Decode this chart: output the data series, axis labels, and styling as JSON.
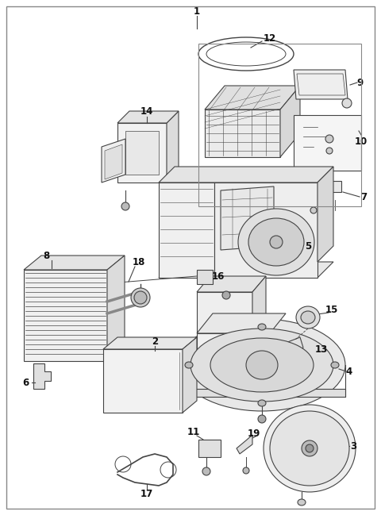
{
  "background_color": "#ffffff",
  "border_color": "#aaaaaa",
  "line_color": "#444444",
  "label_color": "#111111",
  "figure_width": 4.8,
  "figure_height": 6.49,
  "dpi": 100
}
